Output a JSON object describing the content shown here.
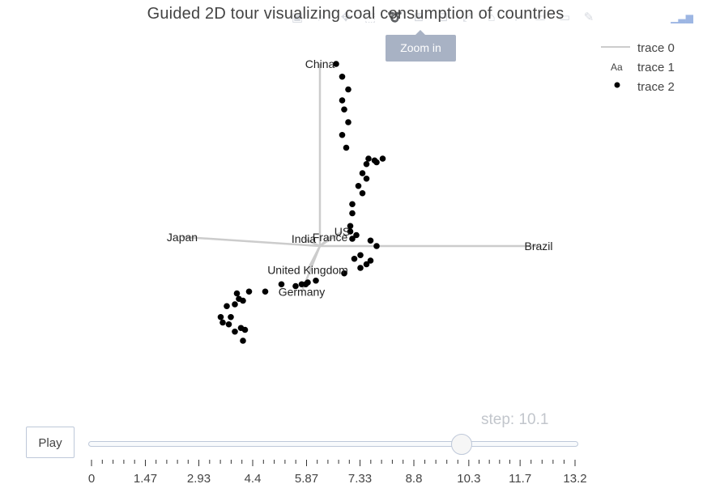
{
  "title": "Guided 2D tour visualizing coal consumption of countries",
  "modebar": {
    "icons": [
      "camera-icon",
      "zoom-icon",
      "pan-icon",
      "box-select-icon",
      "lasso-icon",
      "zoom-in-icon",
      "zoom-out-icon",
      "autoscale-icon",
      "reset-axes-icon",
      "spike-lines-icon",
      "hover-closest-icon",
      "hover-compare-icon",
      "edit-chart-icon",
      "plotly-logo-icon"
    ],
    "tooltip": "Zoom in"
  },
  "legend": {
    "items": [
      {
        "label": "trace 0",
        "symbol": "line",
        "color": "#cccccc"
      },
      {
        "label": "trace 1",
        "symbol": "text",
        "glyph": "Aa"
      },
      {
        "label": "trace 2",
        "symbol": "marker",
        "color": "#000000"
      }
    ]
  },
  "controls": {
    "play_label": "Play",
    "step_label": "step: 10.1",
    "current_step": 10.1,
    "slider_min": 0,
    "slider_max": 13.2,
    "tick_labels": [
      "0",
      "1.47",
      "2.93",
      "4.4",
      "5.87",
      "7.33",
      "8.8",
      "10.3",
      "11.7",
      "13.2"
    ]
  },
  "chart_data": {
    "type": "scatter",
    "title": "Guided 2D tour visualizing coal consumption of countries",
    "xlabel": "",
    "ylabel": "",
    "xlim": [
      -1.2,
      1.3
    ],
    "ylim": [
      -0.65,
      1.05
    ],
    "grid": false,
    "legend_position": "top-right",
    "colors": {
      "axes_lines": "#cccccc",
      "points": "#000000",
      "text": "#444444"
    },
    "axes": [
      {
        "label": "China",
        "x": 0.0,
        "y": 1.0
      },
      {
        "label": "Japan",
        "x": -0.68,
        "y": 0.05
      },
      {
        "label": "India",
        "x": -0.08,
        "y": 0.04
      },
      {
        "label": "France",
        "x": 0.05,
        "y": 0.05
      },
      {
        "label": "US",
        "x": 0.11,
        "y": 0.08
      },
      {
        "label": "Brazil",
        "x": 1.08,
        "y": 0.0
      },
      {
        "label": "United Kingdom",
        "x": -0.06,
        "y": -0.13
      },
      {
        "label": "Germany",
        "x": -0.09,
        "y": -0.25
      }
    ],
    "points": [
      {
        "x": 0.08,
        "y": 1.0
      },
      {
        "x": 0.11,
        "y": 0.93
      },
      {
        "x": 0.14,
        "y": 0.86
      },
      {
        "x": 0.11,
        "y": 0.8
      },
      {
        "x": 0.12,
        "y": 0.75
      },
      {
        "x": 0.14,
        "y": 0.68
      },
      {
        "x": 0.11,
        "y": 0.61
      },
      {
        "x": 0.13,
        "y": 0.54
      },
      {
        "x": 0.24,
        "y": 0.48
      },
      {
        "x": 0.27,
        "y": 0.47
      },
      {
        "x": 0.28,
        "y": 0.46
      },
      {
        "x": 0.31,
        "y": 0.48
      },
      {
        "x": 0.23,
        "y": 0.45
      },
      {
        "x": 0.21,
        "y": 0.4
      },
      {
        "x": 0.23,
        "y": 0.37
      },
      {
        "x": 0.19,
        "y": 0.33
      },
      {
        "x": 0.21,
        "y": 0.29
      },
      {
        "x": 0.16,
        "y": 0.23
      },
      {
        "x": 0.16,
        "y": 0.18
      },
      {
        "x": 0.15,
        "y": 0.11
      },
      {
        "x": 0.16,
        "y": 0.04
      },
      {
        "x": 0.15,
        "y": 0.08
      },
      {
        "x": 0.18,
        "y": 0.06
      },
      {
        "x": 0.25,
        "y": 0.03
      },
      {
        "x": 0.28,
        "y": 0.0
      },
      {
        "x": 0.2,
        "y": -0.05
      },
      {
        "x": 0.17,
        "y": -0.07
      },
      {
        "x": 0.25,
        "y": -0.08
      },
      {
        "x": 0.23,
        "y": -0.1
      },
      {
        "x": 0.2,
        "y": -0.12
      },
      {
        "x": 0.12,
        "y": -0.15
      },
      {
        "x": -0.02,
        "y": -0.19
      },
      {
        "x": -0.06,
        "y": -0.2
      },
      {
        "x": -0.12,
        "y": -0.22
      },
      {
        "x": -0.07,
        "y": -0.21
      },
      {
        "x": -0.19,
        "y": -0.21
      },
      {
        "x": -0.09,
        "y": -0.21
      },
      {
        "x": -0.27,
        "y": -0.25
      },
      {
        "x": -0.35,
        "y": -0.25
      },
      {
        "x": -0.41,
        "y": -0.26
      },
      {
        "x": -0.4,
        "y": -0.29
      },
      {
        "x": -0.38,
        "y": -0.3
      },
      {
        "x": -0.42,
        "y": -0.32
      },
      {
        "x": -0.46,
        "y": -0.33
      },
      {
        "x": -0.44,
        "y": -0.39
      },
      {
        "x": -0.49,
        "y": -0.39
      },
      {
        "x": -0.48,
        "y": -0.42
      },
      {
        "x": -0.45,
        "y": -0.43
      },
      {
        "x": -0.39,
        "y": -0.45
      },
      {
        "x": -0.37,
        "y": -0.46
      },
      {
        "x": -0.42,
        "y": -0.47
      },
      {
        "x": -0.38,
        "y": -0.52
      }
    ]
  }
}
